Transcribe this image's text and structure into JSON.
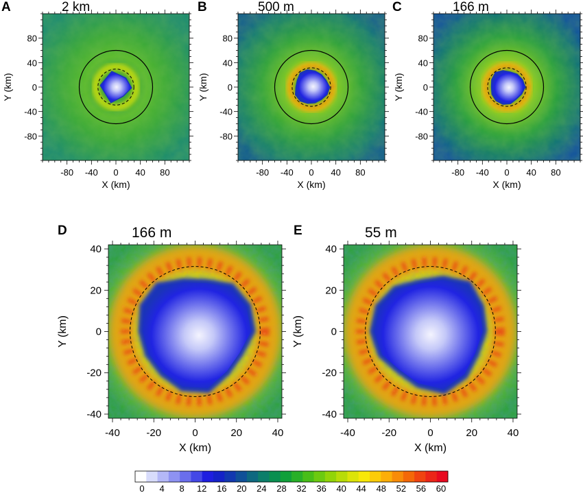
{
  "chart_data": [
    {
      "panel": "A",
      "title": "2 km",
      "type": "heatmap",
      "xlabel": "X (km)",
      "ylabel": "Y (km)",
      "xlim": [
        -120,
        120
      ],
      "ylim": [
        -120,
        120
      ],
      "xticks": [
        "-80",
        "-40",
        "0",
        "40",
        "80"
      ],
      "yticks": [
        "80",
        "40",
        "0",
        "-40",
        "-80"
      ],
      "circle_radius_km": 60,
      "eye_radius_km": 28,
      "eye_shape": "triangular",
      "eyewall_max": 44
    },
    {
      "panel": "B",
      "title": "500 m",
      "type": "heatmap",
      "xlabel": "X (km)",
      "ylabel": "Y (km)",
      "xlim": [
        -120,
        120
      ],
      "ylim": [
        -120,
        120
      ],
      "xticks": [
        "-80",
        "-40",
        "0",
        "40",
        "80"
      ],
      "yticks": [
        "80",
        "40",
        "0",
        "-40",
        "-80"
      ],
      "circle_radius_km": 60,
      "eye_radius_km": 30,
      "eye_shape": "round",
      "eyewall_max": 52
    },
    {
      "panel": "C",
      "title": "166 m",
      "type": "heatmap",
      "xlabel": "X (km)",
      "ylabel": "Y (km)",
      "xlim": [
        -120,
        120
      ],
      "ylim": [
        -120,
        120
      ],
      "xticks": [
        "-80",
        "-40",
        "0",
        "40",
        "80"
      ],
      "yticks": [
        "80",
        "40",
        "0",
        "-40",
        "-80"
      ],
      "circle_radius_km": 60,
      "eye_radius_km": 30,
      "eye_shape": "round",
      "eyewall_max": 52
    },
    {
      "panel": "D",
      "title": "166 m",
      "type": "heatmap",
      "xlabel": "X (km)",
      "ylabel": "Y (km)",
      "xlim": [
        -42,
        42
      ],
      "ylim": [
        -42,
        42
      ],
      "xticks": [
        "-40",
        "-20",
        "0",
        "20",
        "40"
      ],
      "yticks": [
        "40",
        "20",
        "0",
        "-20",
        "-40"
      ],
      "eye_radius_km": 30,
      "eyewall_max": 60
    },
    {
      "panel": "E",
      "title": "55 m",
      "type": "heatmap",
      "xlabel": "X (km)",
      "ylabel": "Y (km)",
      "xlim": [
        -42,
        42
      ],
      "ylim": [
        -42,
        42
      ],
      "xticks": [
        "-40",
        "-20",
        "0",
        "20",
        "40"
      ],
      "yticks": [
        "40",
        "20",
        "0",
        "-20",
        "-40"
      ],
      "eye_radius_km": 30,
      "eyewall_max": 60
    }
  ],
  "colorbar": {
    "labels": [
      "0",
      "4",
      "8",
      "12",
      "16",
      "20",
      "24",
      "28",
      "32",
      "36",
      "40",
      "44",
      "48",
      "52",
      "56",
      "60"
    ],
    "colors": [
      "#ffffff",
      "#d8dcfb",
      "#b4b8f7",
      "#8e92f2",
      "#6a6eec",
      "#4448e6",
      "#1e1ee0",
      "#1422c8",
      "#1238b0",
      "#105098",
      "#0e6880",
      "#0c7e6a",
      "#0a8f50",
      "#10a03a",
      "#28b028",
      "#48be18",
      "#6cca10",
      "#92d408",
      "#b8dc08",
      "#dce408",
      "#f8e808",
      "#fccc08",
      "#fcae08",
      "#f88c08",
      "#f46808",
      "#f04410",
      "#ec2618",
      "#e80a20"
    ]
  }
}
